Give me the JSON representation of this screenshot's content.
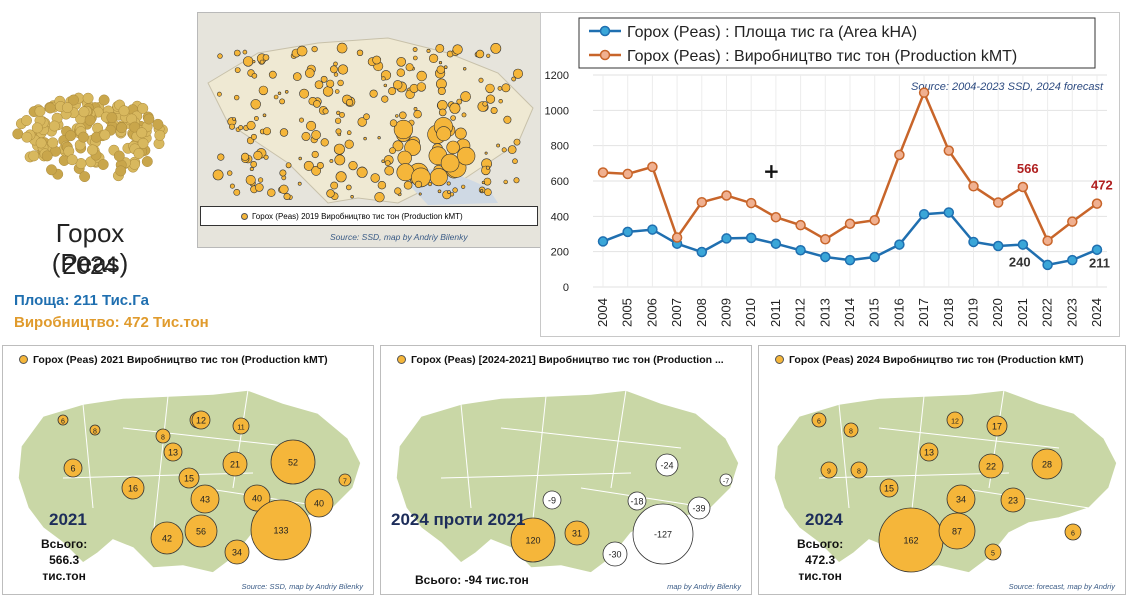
{
  "left": {
    "title": "Горох (Peas)",
    "year": "2024",
    "area": "Площа: 211 Тис.Га",
    "production": "Виробництво: 472 Тис.тон"
  },
  "top_map": {
    "legend": "Горох (Peas) 2019 Виробництво тис тон (Production kMT)",
    "source": "Source: SSD, map by Andriy Bilenky"
  },
  "chart_data": {
    "type": "line",
    "x": [
      "2004",
      "2005",
      "2006",
      "2007",
      "2008",
      "2009",
      "2010",
      "2011",
      "2012",
      "2013",
      "2014",
      "2015",
      "2016",
      "2017",
      "2018",
      "2019",
      "2020",
      "2021",
      "2022",
      "2023",
      "2024"
    ],
    "series": [
      {
        "name": "Горох (Peas) : Площа тис га (Area kHA)",
        "color": "#1f6fb0",
        "values": [
          258,
          312,
          325,
          245,
          198,
          275,
          278,
          245,
          208,
          170,
          152,
          170,
          240,
          412,
          422,
          255,
          232,
          240,
          125,
          152,
          211
        ]
      },
      {
        "name": "Горох (Peas) : Виробництво тис тон (Production kMT)",
        "color": "#c8652a",
        "values": [
          648,
          640,
          680,
          280,
          480,
          518,
          475,
          395,
          350,
          270,
          358,
          378,
          748,
          1100,
          772,
          570,
          478,
          566,
          262,
          370,
          472
        ]
      }
    ],
    "ylim": [
      0,
      1200
    ],
    "yticks": [
      "0",
      "200",
      "400",
      "600",
      "800",
      "1000",
      "1200"
    ],
    "source_note": "Source: 2004-2023 SSD, 2024 forecast",
    "data_labels": [
      {
        "text": "566",
        "color": "#b02020"
      },
      {
        "text": "472",
        "color": "#b02020"
      },
      {
        "text": "240",
        "color": "#333333"
      },
      {
        "text": "211",
        "color": "#333333"
      }
    ]
  },
  "bottom_maps": [
    {
      "title": "Горох (Peas) 2021 Виробництво тис тон (Production kMT)",
      "year": "2021",
      "sub": [
        "Всього:",
        "566.3",
        "тис.тон"
      ],
      "source": "Source: SSD, map by Andriy Bilenky",
      "bubbles": [
        "6",
        "8",
        "12",
        "11",
        "8",
        "13",
        "12",
        "6",
        "16",
        "15",
        "21",
        "52",
        "43",
        "40",
        "7",
        "40",
        "42",
        "56",
        "133",
        "34"
      ]
    },
    {
      "title": "Горох (Peas) [2024-2021] Виробництво тис тон (Production ...",
      "year": "2024 проти 2021",
      "sub": [
        "Всього: -94 тис.тон"
      ],
      "source": "map by Andriy Bilenky",
      "bubbles": [
        "-24",
        "-9",
        "-18",
        "-7",
        "-39",
        "120",
        "31",
        "-127",
        "-30"
      ]
    },
    {
      "title": "Горох (Peas) 2024 Виробництво тис тон (Production kMT)",
      "year": "2024",
      "sub": [
        "Всього:",
        "472.3",
        "тис.тон"
      ],
      "source": "Source: forecast, map by Andriy",
      "bubbles": [
        "6",
        "8",
        "12",
        "17",
        "9",
        "8",
        "13",
        "28",
        "15",
        "22",
        "34",
        "23",
        "162",
        "87",
        "6",
        "5"
      ]
    }
  ],
  "colors": {
    "map_land": "#c9d7a6",
    "bubble": "#f5b63a",
    "negative_bubble": "#ffffff"
  }
}
